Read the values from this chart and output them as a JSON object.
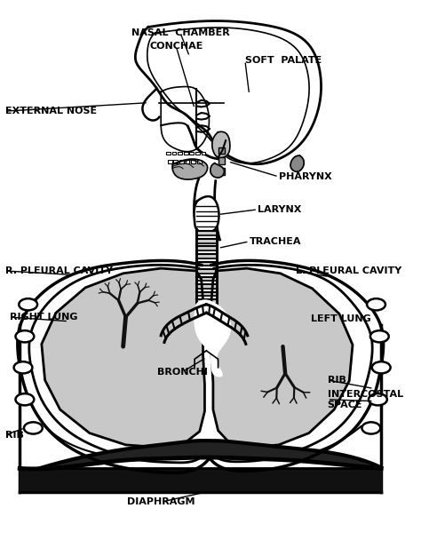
{
  "background_color": "#ffffff",
  "line_color": "#000000",
  "lung_fill": "#c8c8c8",
  "labels": {
    "nasal_chamber": "NASAL  CHAMBER",
    "conchae": "CONCHAE",
    "soft_palate": "SOFT  PALATE",
    "external_nose": "EXTERNAL NOSE",
    "pharynx": "PHARYNX",
    "larynx": "LARYNX",
    "trachea": "TRACHEA",
    "r_pleural": "R. PLEURAL CAVITY",
    "l_pleural": "L. PLEURAL CAVITY",
    "right_lung": "RIGHT LUNG",
    "left_lung": "LEFT LUNG",
    "bronchi": "BRONCHI",
    "rib_left": "RIB",
    "rib_right": "RIB",
    "intercostal": "INTERCOSTAL\nSPACE",
    "diaphragm": "DIAPHRAGM"
  },
  "figsize": [
    4.74,
    6.08
  ],
  "dpi": 100
}
